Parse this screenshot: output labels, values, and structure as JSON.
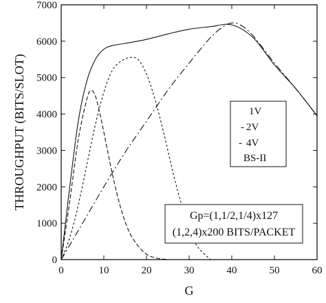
{
  "chart_data": {
    "type": "line",
    "xlabel": "G",
    "ylabel": "THROUGHPUT (BITS/SLOT)",
    "xlim": [
      0,
      60
    ],
    "ylim": [
      0,
      7000
    ],
    "xticks": [
      0,
      10,
      20,
      30,
      40,
      50,
      60
    ],
    "yticks": [
      0,
      1000,
      2000,
      3000,
      4000,
      5000,
      6000,
      7000
    ],
    "grid": false,
    "legend_position": "right-middle",
    "annotation": {
      "line1": "Gp=(1,1/2,1/4)x127",
      "line2": "(1,2,4)x200 BITS/PACKET"
    },
    "series": [
      {
        "name": "1V",
        "dash": "6 3",
        "x": [
          0,
          2,
          4,
          6,
          7,
          8,
          9,
          10,
          12,
          14,
          16,
          18,
          20,
          22,
          25
        ],
        "y": [
          0,
          1600,
          3300,
          4400,
          4650,
          4500,
          4050,
          3500,
          2350,
          1400,
          750,
          380,
          150,
          50,
          0
        ]
      },
      {
        "name": "2V",
        "dash": "3 3",
        "x": [
          0,
          2,
          4,
          6,
          8,
          10,
          12,
          14,
          16,
          18,
          20,
          22,
          24,
          26,
          28,
          30,
          32,
          35
        ],
        "y": [
          0,
          600,
          1500,
          2600,
          3700,
          4600,
          5200,
          5450,
          5550,
          5500,
          5100,
          4400,
          3500,
          2500,
          1600,
          850,
          350,
          0
        ]
      },
      {
        "name": "4V",
        "dash": "10 4 2 4",
        "x": [
          0,
          5,
          10,
          15,
          20,
          25,
          30,
          35,
          38,
          40,
          42,
          45,
          50,
          55,
          60
        ],
        "y": [
          0,
          1000,
          2000,
          2950,
          3800,
          4650,
          5400,
          6100,
          6400,
          6500,
          6450,
          6150,
          5400,
          4700,
          3950
        ]
      },
      {
        "name": "BS-II",
        "dash": "",
        "x": [
          0,
          1,
          2,
          4,
          6,
          8,
          10,
          12,
          15,
          20,
          25,
          30,
          35,
          40,
          45,
          50,
          55,
          60
        ],
        "y": [
          0,
          1000,
          2000,
          3800,
          4900,
          5500,
          5780,
          5880,
          5940,
          6050,
          6200,
          6330,
          6400,
          6450,
          6100,
          5350,
          4700,
          3950
        ]
      }
    ]
  }
}
